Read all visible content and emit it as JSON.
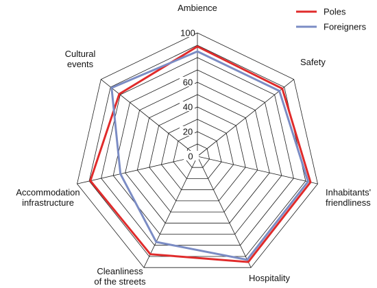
{
  "chart_data": {
    "type": "radar",
    "axes": [
      [
        "Ambience"
      ],
      [
        "Safety"
      ],
      [
        "Inhabitants'",
        "friendliness"
      ],
      [
        "Hospitality"
      ],
      [
        "Cleanliness",
        "of the streets"
      ],
      [
        "Accommodation",
        "infrastructure"
      ],
      [
        "Cultural",
        "events"
      ]
    ],
    "rlim": [
      0,
      100
    ],
    "ticks": [
      0,
      20,
      40,
      60,
      100
    ],
    "grid_levels": 10,
    "series": [
      {
        "name": "Poles",
        "color": "#e02b2b",
        "values": [
          89,
          88,
          94,
          95,
          88,
          89,
          81
        ]
      },
      {
        "name": "Foreigners",
        "color": "#7b8cc4",
        "values": [
          85,
          85,
          92,
          93,
          77,
          64,
          89
        ]
      }
    ],
    "legend_position": "top-right"
  }
}
